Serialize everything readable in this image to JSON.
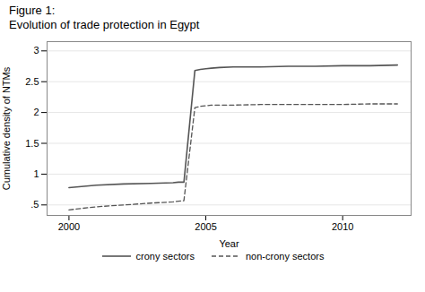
{
  "chart_data": {
    "type": "line",
    "title": "Figure 1:",
    "subtitle": "Evolution of trade protection in Egypt",
    "x_label": "Year",
    "y_label": "Cumulative density of NTMs",
    "x": [
      2000,
      2001,
      2002,
      2003,
      2003.8,
      2004.0,
      2004.2,
      2004.6,
      2004.8,
      2005.0,
      2005.2,
      2005.5,
      2006,
      2007,
      2008,
      2009,
      2010,
      2011,
      2012
    ],
    "series": [
      {
        "name": "crony sectors",
        "color": "#555555",
        "line_style": "solid",
        "values": [
          0.78,
          0.82,
          0.84,
          0.85,
          0.86,
          0.87,
          0.87,
          2.68,
          2.7,
          2.71,
          2.72,
          2.73,
          2.74,
          2.74,
          2.75,
          2.75,
          2.76,
          2.76,
          2.77
        ]
      },
      {
        "name": "non-crony sectors",
        "color": "#555555",
        "line_style": "dashed",
        "values": [
          0.42,
          0.47,
          0.5,
          0.53,
          0.55,
          0.56,
          0.57,
          2.08,
          2.1,
          2.11,
          2.12,
          2.12,
          2.12,
          2.13,
          2.13,
          2.13,
          2.13,
          2.14,
          2.14
        ]
      }
    ],
    "xlim": [
      1999.2,
      2012.5
    ],
    "xticks": [
      2000,
      2005,
      2010
    ],
    "ylim": [
      0.33,
      3.15
    ],
    "yticks": [
      {
        "value": 0.5,
        "label": ".5"
      },
      1,
      1.5,
      2,
      2.5,
      3
    ],
    "grid": "y",
    "legend": "bottom"
  }
}
